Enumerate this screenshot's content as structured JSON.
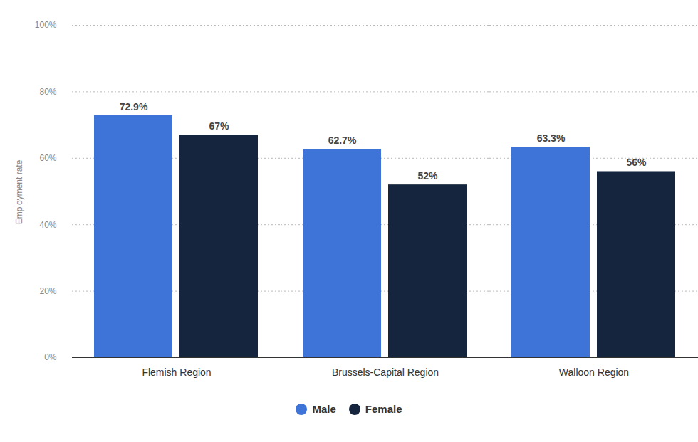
{
  "chart_data": {
    "type": "bar",
    "categories": [
      "Flemish Region",
      "Brussels-Capital Region",
      "Walloon Region"
    ],
    "series": [
      {
        "name": "Male",
        "color": "#3e74d8",
        "values": [
          72.9,
          62.7,
          63.3
        ],
        "value_labels": [
          "72.9%",
          "62.7%",
          "63.3%"
        ]
      },
      {
        "name": "Female",
        "color": "#15253d",
        "values": [
          67,
          52,
          56
        ],
        "value_labels": [
          "67%",
          "52%",
          "56%"
        ]
      }
    ],
    "y_label": "Employment rate",
    "ylim": [
      0,
      100
    ],
    "yticks": [
      {
        "value": 0,
        "label": "0%"
      },
      {
        "value": 20,
        "label": "20%"
      },
      {
        "value": 40,
        "label": "40%"
      },
      {
        "value": 60,
        "label": "60%"
      },
      {
        "value": 80,
        "label": "80%"
      },
      {
        "value": 100,
        "label": "100%"
      }
    ],
    "grid": true,
    "legend": "bottom",
    "data_labels": true
  }
}
